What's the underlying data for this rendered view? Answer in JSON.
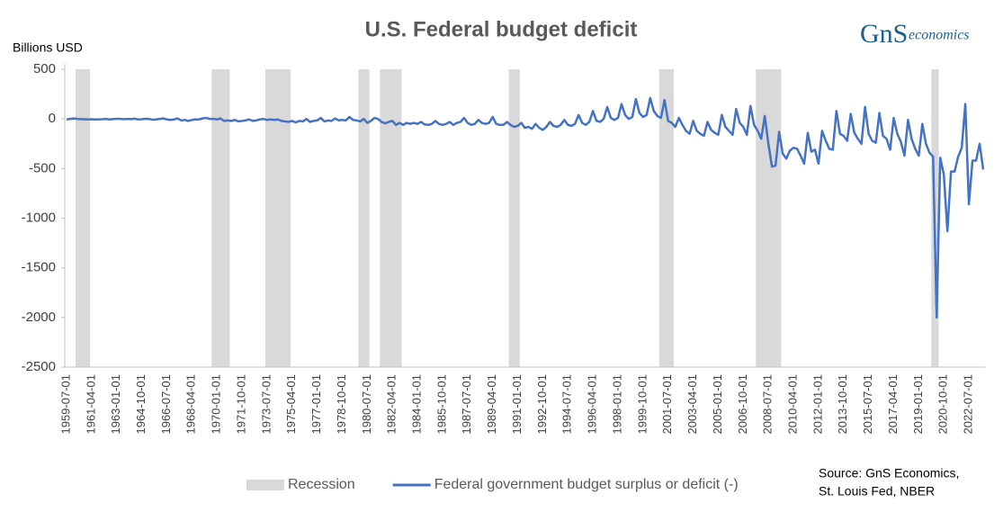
{
  "chart_data": {
    "type": "line",
    "title": "U.S. Federal budget deficit",
    "y_label": "Billions USD",
    "logo": {
      "mark": "GnS",
      "text": "economics"
    },
    "source": [
      "Source: GnS Economics,",
      "St. Louis Fed, NBER"
    ],
    "ylim": [
      -2500,
      500
    ],
    "yticks": [
      500,
      0,
      -500,
      -1000,
      -1500,
      -2000,
      -2500
    ],
    "grid": false,
    "legend": "bottom",
    "categories": [
      "1959-07-01",
      null,
      null,
      null,
      null,
      null,
      null,
      "1961-04-01",
      null,
      null,
      null,
      null,
      null,
      null,
      "1963-01-01",
      null,
      null,
      null,
      null,
      null,
      null,
      "1964-10-01",
      null,
      null,
      null,
      null,
      null,
      null,
      "1966-07-01",
      null,
      null,
      null,
      null,
      null,
      null,
      "1968-04-01",
      null,
      null,
      null,
      null,
      null,
      null,
      "1970-01-01",
      null,
      null,
      null,
      null,
      null,
      null,
      "1971-10-01",
      null,
      null,
      null,
      null,
      null,
      null,
      "1973-07-01",
      null,
      null,
      null,
      null,
      null,
      null,
      "1975-04-01",
      null,
      null,
      null,
      null,
      null,
      null,
      "1977-01-01",
      null,
      null,
      null,
      null,
      null,
      null,
      "1978-10-01",
      null,
      null,
      null,
      null,
      null,
      null,
      "1980-07-01",
      null,
      null,
      null,
      null,
      null,
      null,
      "1982-04-01",
      null,
      null,
      null,
      null,
      null,
      null,
      "1984-01-01",
      null,
      null,
      null,
      null,
      null,
      null,
      "1985-10-01",
      null,
      null,
      null,
      null,
      null,
      null,
      "1987-07-01",
      null,
      null,
      null,
      null,
      null,
      null,
      "1989-04-01",
      null,
      null,
      null,
      null,
      null,
      null,
      "1991-01-01",
      null,
      null,
      null,
      null,
      null,
      null,
      "1992-10-01",
      null,
      null,
      null,
      null,
      null,
      null,
      "1994-07-01",
      null,
      null,
      null,
      null,
      null,
      null,
      "1996-04-01",
      null,
      null,
      null,
      null,
      null,
      null,
      "1998-01-01",
      null,
      null,
      null,
      null,
      null,
      null,
      "1999-10-01",
      null,
      null,
      null,
      null,
      null,
      null,
      "2001-07-01",
      null,
      null,
      null,
      null,
      null,
      null,
      "2003-04-01",
      null,
      null,
      null,
      null,
      null,
      null,
      "2005-01-01",
      null,
      null,
      null,
      null,
      null,
      null,
      "2006-10-01",
      null,
      null,
      null,
      null,
      null,
      null,
      "2008-07-01",
      null,
      null,
      null,
      null,
      null,
      null,
      "2010-04-01",
      null,
      null,
      null,
      null,
      null,
      null,
      "2012-01-01",
      null,
      null,
      null,
      null,
      null,
      null,
      "2013-10-01",
      null,
      null,
      null,
      null,
      null,
      null,
      "2015-07-01",
      null,
      null,
      null,
      null,
      null,
      null,
      "2017-04-01",
      null,
      null,
      null,
      null,
      null,
      null,
      "2019-01-01",
      null,
      null,
      null,
      null,
      null,
      null,
      "2020-10-01",
      null,
      null,
      null,
      null,
      null,
      null,
      "2022-07-01",
      null,
      null,
      null,
      null
    ],
    "series": [
      {
        "name": "Recession",
        "kind": "band",
        "color": "#d9d9d9",
        "values": [
          0,
          0,
          0,
          1,
          1,
          1,
          1,
          0,
          0,
          0,
          0,
          0,
          0,
          0,
          0,
          0,
          0,
          0,
          0,
          0,
          0,
          0,
          0,
          0,
          0,
          0,
          0,
          0,
          0,
          0,
          0,
          0,
          0,
          0,
          0,
          0,
          0,
          0,
          0,
          0,
          0,
          1,
          1,
          1,
          1,
          1,
          0,
          0,
          0,
          0,
          0,
          0,
          0,
          0,
          0,
          0,
          1,
          1,
          1,
          1,
          1,
          1,
          1,
          0,
          0,
          0,
          0,
          0,
          0,
          0,
          0,
          0,
          0,
          0,
          0,
          0,
          0,
          0,
          0,
          0,
          0,
          0,
          1,
          1,
          1,
          0,
          0,
          0,
          1,
          1,
          1,
          1,
          1,
          1,
          0,
          0,
          0,
          0,
          0,
          0,
          0,
          0,
          0,
          0,
          0,
          0,
          0,
          0,
          0,
          0,
          0,
          0,
          0,
          0,
          0,
          0,
          0,
          0,
          0,
          0,
          0,
          0,
          0,
          0,
          1,
          1,
          1,
          0,
          0,
          0,
          0,
          0,
          0,
          0,
          0,
          0,
          0,
          0,
          0,
          0,
          0,
          0,
          0,
          0,
          0,
          0,
          0,
          0,
          0,
          0,
          0,
          0,
          0,
          0,
          0,
          0,
          0,
          0,
          0,
          0,
          0,
          0,
          0,
          0,
          0,
          0,
          1,
          1,
          1,
          1,
          0,
          0,
          0,
          0,
          0,
          0,
          0,
          0,
          0,
          0,
          0,
          0,
          0,
          0,
          0,
          0,
          0,
          0,
          0,
          0,
          0,
          0,
          0,
          1,
          1,
          1,
          1,
          1,
          1,
          1,
          0,
          0,
          0,
          0,
          0,
          0,
          0,
          0,
          0,
          0,
          0,
          0,
          0,
          0,
          0,
          0,
          0,
          0,
          0,
          0,
          0,
          0,
          0,
          0,
          0,
          0,
          0,
          0,
          0,
          0,
          0,
          0,
          0,
          0,
          0,
          0,
          0,
          0,
          0,
          0,
          0,
          0,
          1,
          1,
          0,
          0,
          0,
          0,
          0,
          0,
          0,
          0,
          0,
          0,
          0,
          0,
          0
        ]
      },
      {
        "name": "Federal government budget surplus or deficit (-)",
        "kind": "line",
        "color": "#4472c4",
        "values": [
          -5,
          0,
          5,
          0,
          -2,
          -3,
          -5,
          -3,
          -5,
          -4,
          -3,
          0,
          -5,
          -2,
          2,
          0,
          -3,
          0,
          -2,
          3,
          -5,
          -3,
          2,
          0,
          -8,
          -5,
          0,
          5,
          -5,
          -10,
          -5,
          5,
          -15,
          -10,
          -20,
          -10,
          -5,
          -5,
          5,
          10,
          0,
          0,
          -5,
          5,
          -20,
          -15,
          -20,
          -10,
          -25,
          -20,
          -15,
          -5,
          -20,
          -15,
          -5,
          0,
          -10,
          -5,
          -10,
          -5,
          -20,
          -25,
          -30,
          -20,
          -35,
          -20,
          -25,
          0,
          -30,
          -20,
          -15,
          10,
          -25,
          -15,
          -20,
          5,
          -15,
          -10,
          -15,
          20,
          -10,
          -15,
          -25,
          0,
          -40,
          -20,
          10,
          0,
          -30,
          -45,
          -30,
          -20,
          -60,
          -40,
          -60,
          -40,
          -50,
          -40,
          -50,
          -30,
          -55,
          -60,
          -50,
          -20,
          -50,
          -60,
          -50,
          -30,
          -60,
          -40,
          -30,
          10,
          -40,
          -60,
          -50,
          -10,
          -40,
          -50,
          -40,
          20,
          -50,
          -60,
          -60,
          -30,
          -60,
          -80,
          -70,
          -40,
          -90,
          -80,
          -100,
          -50,
          -90,
          -110,
          -80,
          -30,
          -70,
          -80,
          -60,
          -10,
          -60,
          -70,
          -50,
          40,
          -40,
          -60,
          -30,
          80,
          -20,
          -30,
          0,
          120,
          10,
          -10,
          10,
          150,
          40,
          0,
          20,
          200,
          60,
          20,
          40,
          210,
          80,
          30,
          10,
          190,
          -20,
          -40,
          -80,
          10,
          -60,
          -120,
          -150,
          -20,
          -120,
          -150,
          -170,
          -30,
          -110,
          -140,
          -160,
          40,
          -80,
          -120,
          -160,
          100,
          -40,
          -80,
          -160,
          130,
          -60,
          -120,
          -200,
          30,
          -250,
          -480,
          -470,
          -130,
          -350,
          -400,
          -320,
          -290,
          -300,
          -370,
          -450,
          -140,
          -330,
          -310,
          -450,
          -120,
          -220,
          -300,
          -310,
          80,
          -150,
          -170,
          -220,
          50,
          -140,
          -200,
          -250,
          120,
          -150,
          -220,
          -240,
          60,
          -170,
          -200,
          -310,
          10,
          -150,
          -230,
          -370,
          -10,
          -200,
          -300,
          -370,
          -50,
          -250,
          -340,
          -380,
          -2000,
          -390,
          -560,
          -1130,
          -530,
          -530,
          -380,
          -290,
          150,
          -860,
          -420,
          -420,
          -250,
          -510
        ]
      }
    ]
  }
}
